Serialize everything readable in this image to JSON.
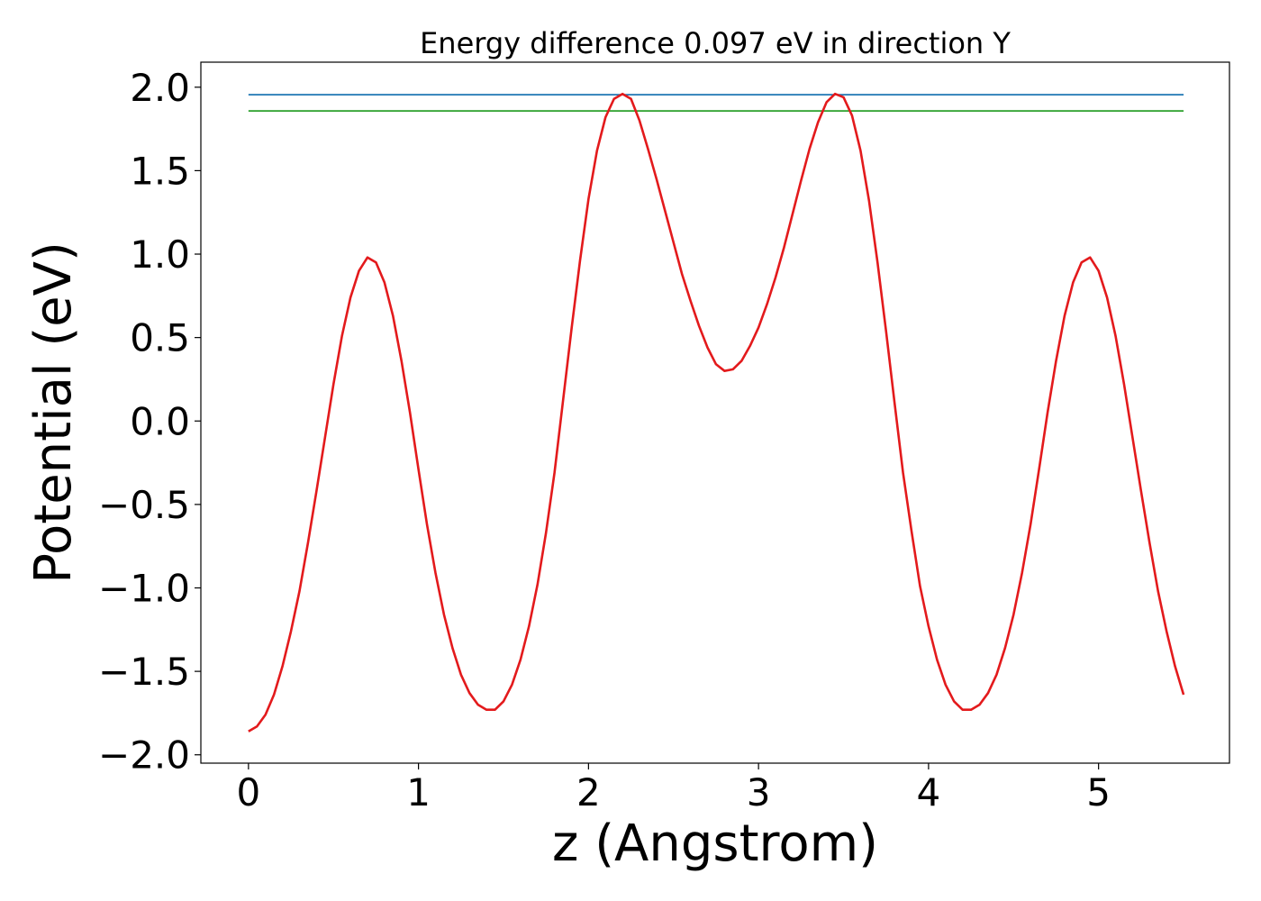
{
  "chart_data": {
    "type": "line",
    "title": "Energy difference 0.097 eV in direction Y",
    "xlabel": "z (Angstrom)",
    "ylabel": "Potential (eV)",
    "xlim": [
      -0.28,
      5.77
    ],
    "ylim": [
      -2.05,
      2.15
    ],
    "xticks": [
      0,
      1,
      2,
      3,
      4,
      5
    ],
    "xtick_labels": [
      "0",
      "1",
      "2",
      "3",
      "4",
      "5"
    ],
    "yticks": [
      -2.0,
      -1.5,
      -1.0,
      -0.5,
      0.0,
      0.5,
      1.0,
      1.5,
      2.0
    ],
    "ytick_labels": [
      "−2.0",
      "−1.5",
      "−1.0",
      "−0.5",
      "0.0",
      "0.5",
      "1.0",
      "1.5",
      "2.0"
    ],
    "grid": false,
    "legend": "none",
    "series": [
      {
        "color": "#1f77b4",
        "kind": "hline",
        "x": [
          0,
          5.5
        ],
        "y": [
          1.955,
          1.955
        ]
      },
      {
        "color": "#2ca02c",
        "kind": "hline",
        "x": [
          0,
          5.5
        ],
        "y": [
          1.858,
          1.858
        ]
      },
      {
        "color": "#e31a1c",
        "kind": "curve",
        "x": [
          0.0,
          0.05,
          0.1,
          0.15,
          0.2,
          0.25,
          0.3,
          0.35,
          0.4,
          0.45,
          0.5,
          0.55,
          0.6,
          0.65,
          0.7,
          0.75,
          0.8,
          0.85,
          0.9,
          0.95,
          1.0,
          1.05,
          1.1,
          1.15,
          1.2,
          1.25,
          1.3,
          1.35,
          1.4,
          1.45,
          1.5,
          1.55,
          1.6,
          1.65,
          1.7,
          1.75,
          1.8,
          1.85,
          1.9,
          1.95,
          2.0,
          2.05,
          2.1,
          2.15,
          2.2,
          2.25,
          2.3,
          2.35,
          2.4,
          2.45,
          2.5,
          2.55,
          2.6,
          2.65,
          2.7,
          2.75,
          2.8,
          2.85,
          2.9,
          2.95,
          3.0,
          3.05,
          3.1,
          3.15,
          3.2,
          3.25,
          3.3,
          3.35,
          3.4,
          3.45,
          3.5,
          3.55,
          3.6,
          3.65,
          3.7,
          3.75,
          3.8,
          3.85,
          3.9,
          3.95,
          4.0,
          4.05,
          4.1,
          4.15,
          4.2,
          4.25,
          4.3,
          4.35,
          4.4,
          4.45,
          4.5,
          4.55,
          4.6,
          4.65,
          4.7,
          4.75,
          4.8,
          4.85,
          4.9,
          4.95,
          5.0,
          5.05,
          5.1,
          5.15,
          5.2,
          5.25,
          5.3,
          5.35,
          5.4,
          5.45,
          5.5
        ],
        "y": [
          -1.86,
          -1.83,
          -1.76,
          -1.64,
          -1.47,
          -1.26,
          -1.02,
          -0.73,
          -0.42,
          -0.1,
          0.22,
          0.51,
          0.74,
          0.9,
          0.98,
          0.95,
          0.83,
          0.63,
          0.36,
          0.05,
          -0.29,
          -0.62,
          -0.91,
          -1.16,
          -1.36,
          -1.52,
          -1.63,
          -1.7,
          -1.73,
          -1.73,
          -1.68,
          -1.58,
          -1.43,
          -1.23,
          -0.98,
          -0.67,
          -0.31,
          0.12,
          0.55,
          0.96,
          1.33,
          1.62,
          1.82,
          1.93,
          1.96,
          1.93,
          1.8,
          1.63,
          1.45,
          1.26,
          1.07,
          0.88,
          0.72,
          0.57,
          0.44,
          0.34,
          0.3,
          0.31,
          0.36,
          0.45,
          0.56,
          0.7,
          0.86,
          1.04,
          1.24,
          1.44,
          1.63,
          1.79,
          1.91,
          1.96,
          1.94,
          1.83,
          1.62,
          1.32,
          0.95,
          0.54,
          0.11,
          -0.31,
          -0.66,
          -0.99,
          -1.23,
          -1.43,
          -1.58,
          -1.68,
          -1.73,
          -1.73,
          -1.7,
          -1.63,
          -1.52,
          -1.36,
          -1.16,
          -0.91,
          -0.62,
          -0.29,
          0.05,
          0.36,
          0.63,
          0.83,
          0.95,
          0.98,
          0.9,
          0.74,
          0.51,
          0.22,
          -0.1,
          -0.42,
          -0.73,
          -1.02,
          -1.26,
          -1.47,
          -1.64
        ]
      }
    ]
  }
}
